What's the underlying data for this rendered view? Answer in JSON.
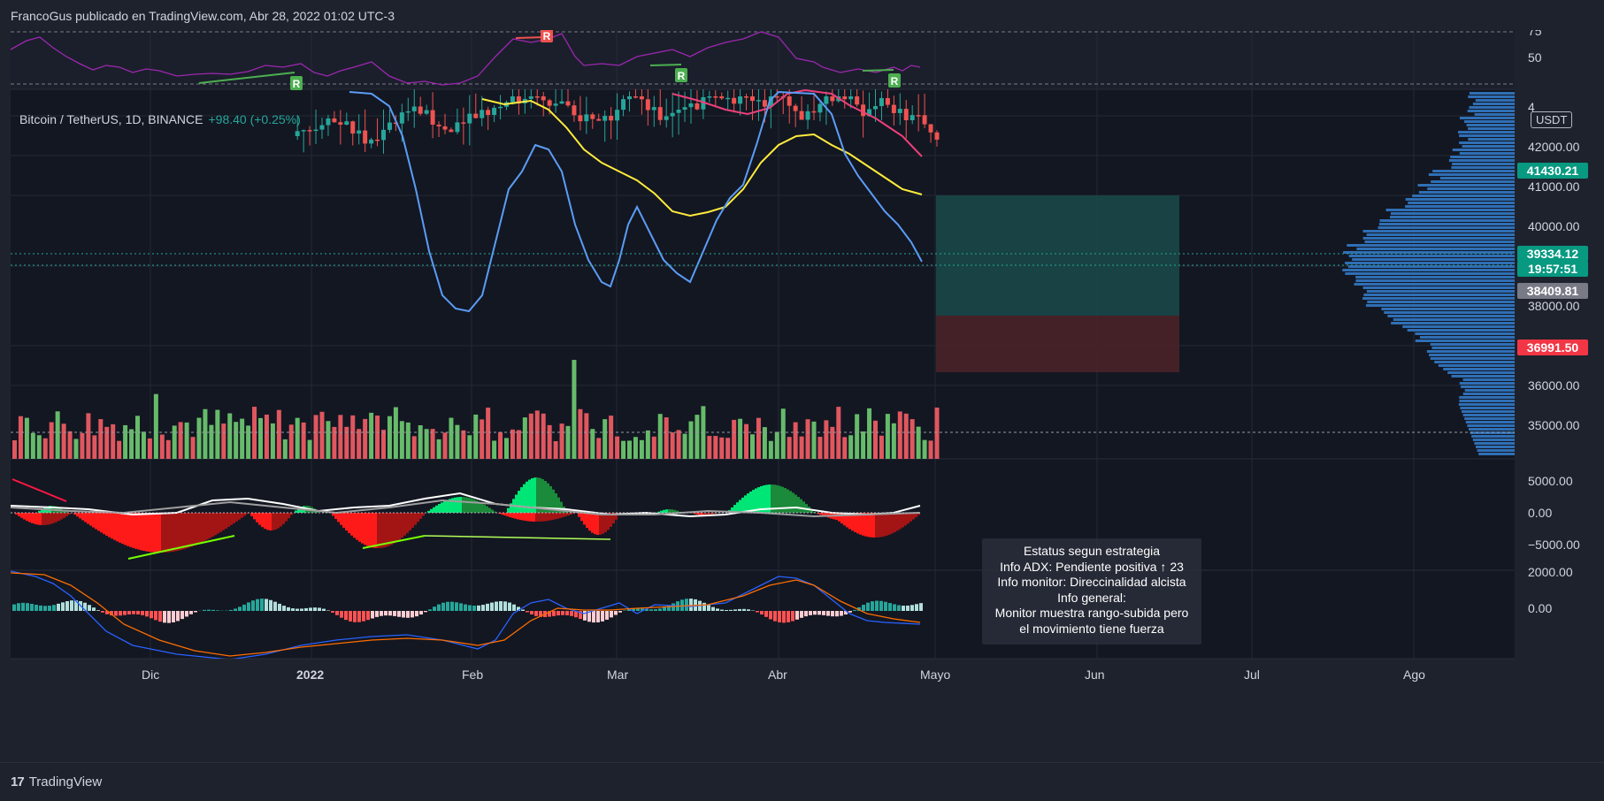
{
  "header": {
    "author_line": "FrancoGus publicado en TradingView.com, Abr 28, 2022 01:02 UTC-3"
  },
  "symbol": {
    "pair": "Bitcoin / TetherUS, 1D, BINANCE",
    "change": "+98.40 (+0.25%)"
  },
  "currency_badge": "USDT",
  "price_badges": {
    "target": "41430.21",
    "last": "39334.12",
    "countdown": "19:57:51",
    "entry": "38409.81",
    "stop": "36991.50"
  },
  "price_axis": [
    "4",
    "42000.00",
    "41000.00",
    "40000.00",
    "38000.00",
    "36000.00",
    "35000.00"
  ],
  "rsi_axis": [
    "75",
    "50"
  ],
  "adx_axis": [
    "5000.00",
    "0.00",
    "−5000.00"
  ],
  "macd_axis": [
    "2000.00",
    "0.00"
  ],
  "time_axis": [
    "Dic",
    "2022",
    "Feb",
    "Mar",
    "Abr",
    "Mayo",
    "Jun",
    "Jul",
    "Ago"
  ],
  "rsi_markers": [
    "R",
    "R",
    "R",
    "R"
  ],
  "strategy_box": {
    "line1": "Estatus segun estrategia",
    "line2": "Info ADX: Pendiente positiva ↑ 23",
    "line3": "Info monitor: Direccinalidad alcista",
    "line4": "Info general:",
    "line5": "Monitor muestra rango-subida pero",
    "line6": "el movimiento tiene fuerza"
  },
  "footer": {
    "brand": "TradingView",
    "logo": "17"
  },
  "colors": {
    "background": "#1e222d",
    "pane": "#131722",
    "bull": "#26a69a",
    "bear": "#ef5350",
    "rsi": "#9c27b0",
    "ema_fast": "#5b9cf6",
    "ema_mid": "#ffeb3b",
    "ema_slow": "#ec407a",
    "target_zone": "#1a4747",
    "stop_zone": "#4a2228"
  }
}
